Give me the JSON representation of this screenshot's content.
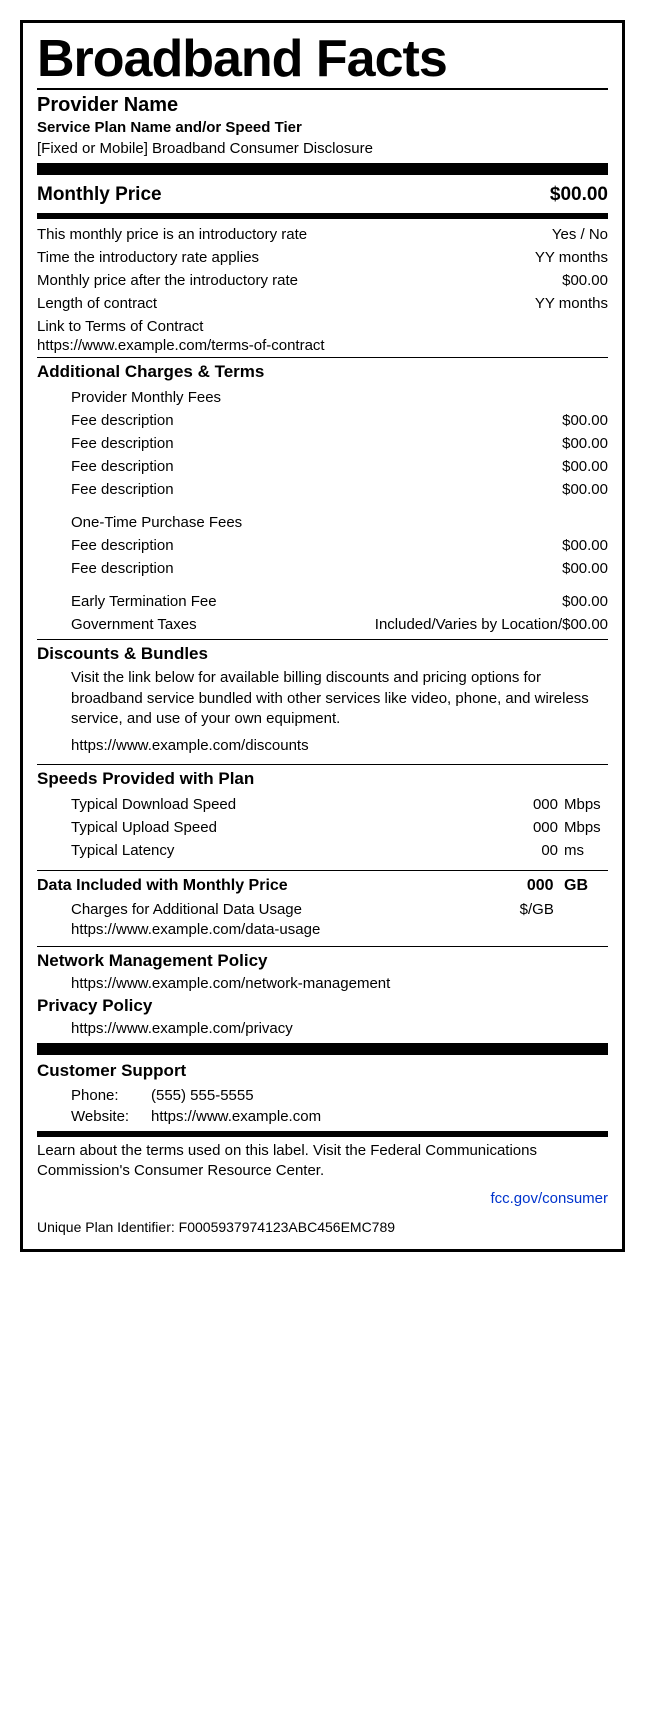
{
  "title": "Broadband Facts",
  "provider": "Provider Name",
  "plan_name": "Service Plan Name and/or Speed Tier",
  "disclosure": "[Fixed or Mobile] Broadband Consumer Disclosure",
  "monthly_price": {
    "label": "Monthly Price",
    "value": "$00.00"
  },
  "intro_rows": [
    {
      "label": "This monthly price is an introductory rate",
      "value": "Yes / No"
    },
    {
      "label": "Time the introductory rate applies",
      "value": "YY months"
    },
    {
      "label": "Monthly price after the introductory rate",
      "value": "$00.00"
    },
    {
      "label": "Length of contract",
      "value": "YY months"
    }
  ],
  "terms_link": {
    "label": "Link to Terms of Contract",
    "url": "https://www.example.com/terms-of-contract"
  },
  "additional": {
    "heading": "Additional Charges & Terms",
    "monthly_fees_label": "Provider Monthly Fees",
    "monthly_fees": [
      {
        "label": "Fee description",
        "value": "$00.00"
      },
      {
        "label": "Fee description",
        "value": "$00.00"
      },
      {
        "label": "Fee description",
        "value": "$00.00"
      },
      {
        "label": "Fee description",
        "value": "$00.00"
      }
    ],
    "onetime_label": "One-Time Purchase Fees",
    "onetime_fees": [
      {
        "label": "Fee description",
        "value": "$00.00"
      },
      {
        "label": "Fee description",
        "value": "$00.00"
      }
    ],
    "etf": {
      "label": "Early Termination Fee",
      "value": "$00.00"
    },
    "taxes": {
      "label": "Government Taxes",
      "value": "Included/Varies by Location/$00.00"
    }
  },
  "discounts": {
    "heading": "Discounts & Bundles",
    "text": "Visit the link below for available billing discounts and pricing options for broadband service bundled with other services like video, phone, and wireless service, and use of your own equipment.",
    "url": "https://www.example.com/discounts"
  },
  "speeds": {
    "heading": "Speeds Provided with Plan",
    "rows": [
      {
        "label": "Typical Download Speed",
        "num": "000",
        "unit": "Mbps"
      },
      {
        "label": "Typical Upload Speed",
        "num": "000",
        "unit": "Mbps"
      },
      {
        "label": "Typical Latency",
        "num": "00",
        "unit": "ms"
      }
    ]
  },
  "data_included": {
    "heading": "Data Included with Monthly Price",
    "amount_num": "000",
    "amount_unit": "GB",
    "extra": {
      "label": "Charges for Additional Data Usage",
      "value": "$/GB"
    },
    "url": "https://www.example.com/data-usage"
  },
  "policies": {
    "net_mgmt": {
      "heading": "Network Management Policy",
      "url": "https://www.example.com/network-management"
    },
    "privacy": {
      "heading": "Privacy Policy",
      "url": "https://www.example.com/privacy"
    }
  },
  "support": {
    "heading": "Customer Support",
    "phone_label": "Phone:",
    "phone": "(555)  555-5555",
    "web_label": "Website:",
    "web": "https://www.example.com"
  },
  "learn_text": "Learn about the terms used on this label. Visit the Federal Communications Commission's Consumer Resource Center.",
  "fcc_link": "fcc.gov/consumer",
  "upi": {
    "label": "Unique Plan Identifier:",
    "value": "F0005937974123ABC456EMC789"
  },
  "colors": {
    "link": "#0033cc",
    "text": "#000000",
    "bg": "#ffffff"
  }
}
